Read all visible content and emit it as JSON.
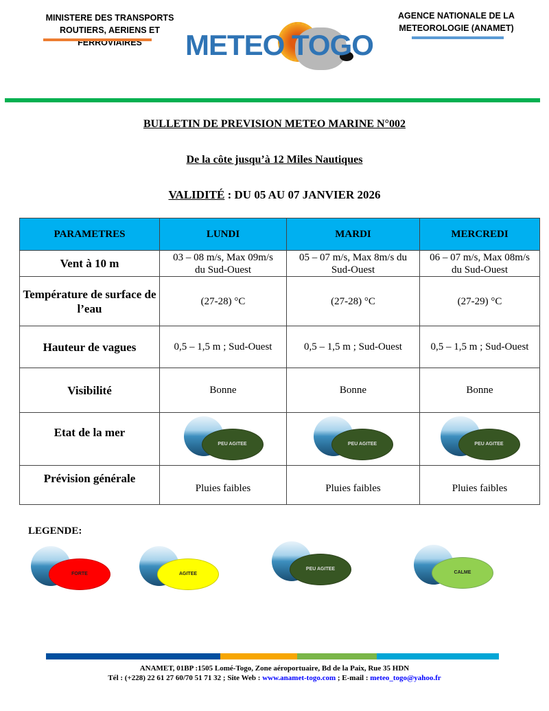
{
  "header": {
    "ministry_line1": "MINISTERE DES TRANSPORTS",
    "ministry_line2": "ROUTIERS, AERIENS ET FERROVIAIRES",
    "agency_line1": "AGENCE NATIONALE DE LA",
    "agency_line2": "METEOROLOGIE (ANAMET)",
    "logo": "METEO TOGO",
    "colors": {
      "orange": "#ed7d31",
      "blue": "#5b9bd5",
      "green": "#00b050"
    }
  },
  "title": "BULLETIN DE PREVISION METEO MARINE N°002",
  "subtitle": "De la côte jusqu’à 12 Miles Nautiques",
  "validity_label": "VALIDITÉ",
  "validity_value": " : DU 05 AU 07 JANVIER 2026",
  "table": {
    "headers": [
      "PARAMETRES",
      "LUNDI",
      "MARDI",
      "MERCREDI"
    ],
    "rows": [
      {
        "param": "Vent à 10 m",
        "values": [
          "03 – 08 m/s, Max 09m/s du Sud-Ouest",
          "05 – 07 m/s, Max 8m/s du Sud-Ouest",
          "06 – 07 m/s, Max 08m/s du Sud-Ouest"
        ]
      },
      {
        "param": "Température de surface de l’eau",
        "values": [
          "(27-28) °C",
          "(27-28) °C",
          "(27-29) °C"
        ]
      },
      {
        "param": "Hauteur de vagues",
        "values": [
          "0,5 – 1,5 m ; Sud-Ouest",
          "0,5 – 1,5 m ; Sud-Ouest",
          "0,5 – 1,5 m ; Sud-Ouest"
        ]
      },
      {
        "param": "Visibilité",
        "values": [
          "Bonne",
          "Bonne",
          "Bonne"
        ]
      },
      {
        "param": "Etat de la mer",
        "values": [
          "PEU AGITEE",
          "PEU AGITEE",
          "PEU AGITEE"
        ]
      },
      {
        "param": "Prévision générale",
        "values": [
          "Pluies faibles",
          "Pluies faibles",
          "Pluies faibles"
        ]
      }
    ],
    "header_color": "#00b0f0"
  },
  "legend": {
    "title": "LEGENDE:",
    "items": [
      {
        "label": "FORTE",
        "color": "#ff0000"
      },
      {
        "label": "AGITEE",
        "color": "#ffff00"
      },
      {
        "label": "PEU AGITEE",
        "color": "#375623"
      },
      {
        "label": "CALME",
        "color": "#92d050"
      }
    ]
  },
  "footer": {
    "line1": "ANAMET, 01BP :1505 Lomé-Togo, Zone aéroportuaire, Bd de la Paix, Rue 35 HDN",
    "line2_prefix": "Tél : (+228) 22 61 27 60/70 51 71 32 ; Site Web : ",
    "website": "www.anamet-togo.com",
    "line2_mid": " ; E-mail : ",
    "email": "meteo_togo@yahoo.fr",
    "bar_colors": [
      "#004f9f",
      "#f7a600",
      "#7ab648",
      "#00a6d6"
    ]
  }
}
